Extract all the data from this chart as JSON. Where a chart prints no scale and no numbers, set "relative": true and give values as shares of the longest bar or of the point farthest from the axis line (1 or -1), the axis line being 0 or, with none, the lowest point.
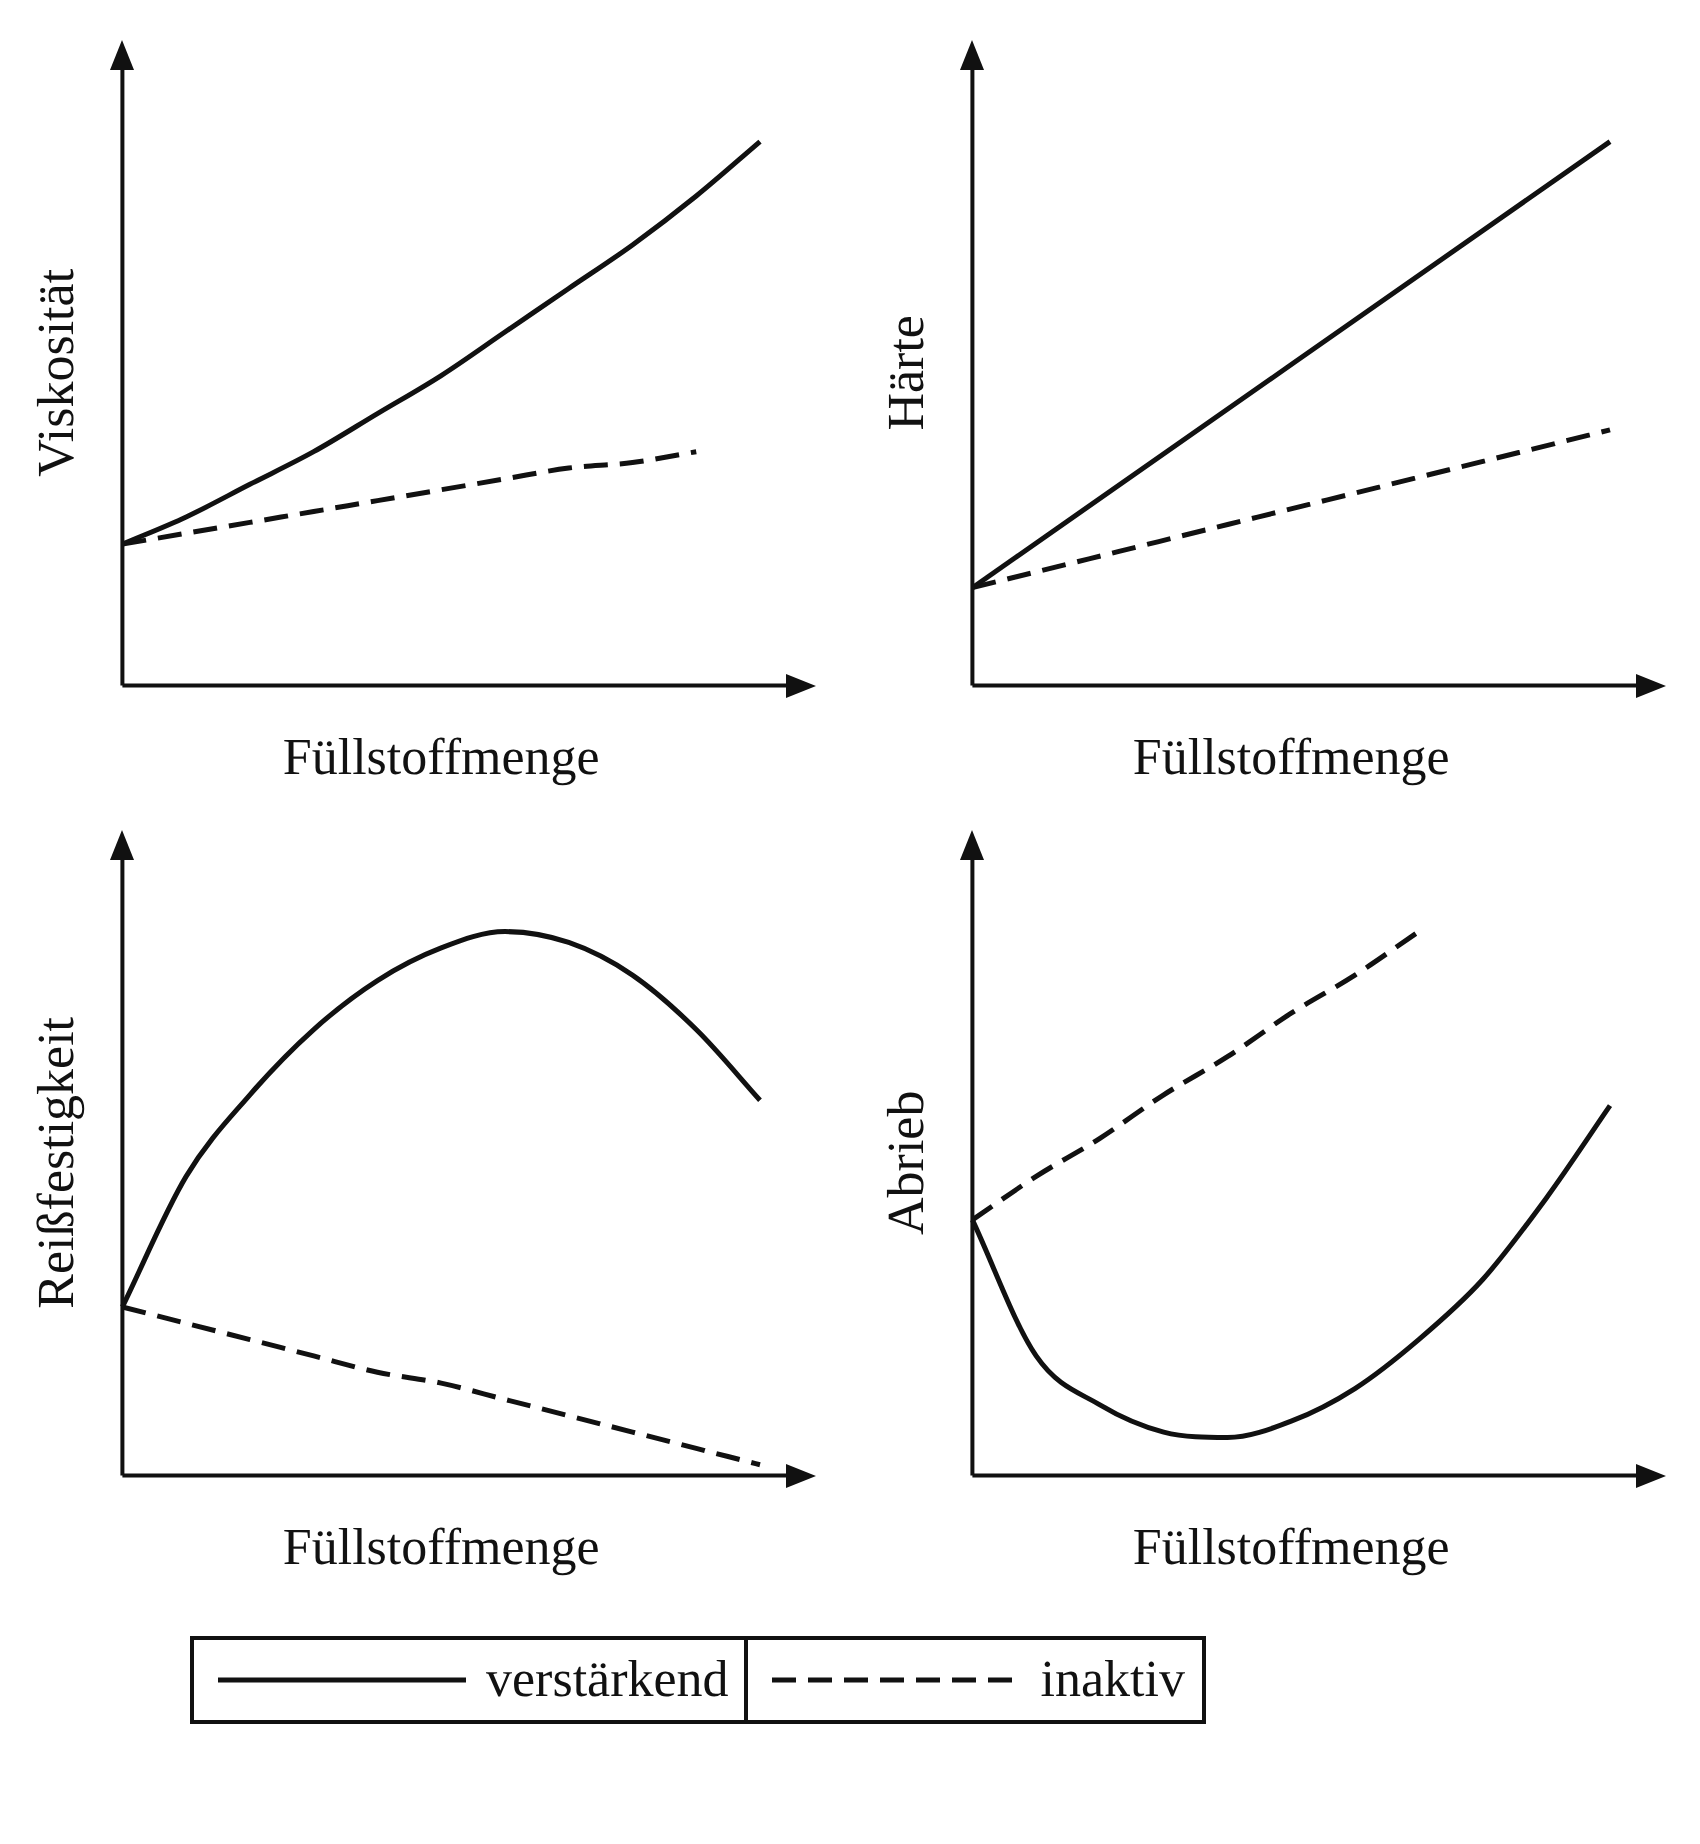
{
  "chart_data": [
    {
      "type": "line",
      "relative": true,
      "ylabel": "Viskosität",
      "xlabel": "Füllstoffmenge",
      "legend": "bottom",
      "categories": [
        null,
        null,
        null,
        null,
        null,
        null,
        null,
        null,
        null,
        null,
        null
      ],
      "series": [
        {
          "name": "verstärkend",
          "color": "#111111",
          "line_style": "solid",
          "values": [
            0.26,
            0.31,
            0.37,
            0.43,
            0.5,
            0.57,
            0.65,
            0.73,
            0.81,
            0.9,
            1.0
          ]
        },
        {
          "name": "inaktiv",
          "color": "#111111",
          "line_style": "dashed",
          "values": [
            0.26,
            0.28,
            0.3,
            0.32,
            0.34,
            0.36,
            0.38,
            0.4,
            0.41,
            0.43,
            null
          ]
        }
      ]
    },
    {
      "type": "line",
      "relative": true,
      "ylabel": "Härte",
      "xlabel": "Füllstoffmenge",
      "categories": [
        null,
        null
      ],
      "series": [
        {
          "color": "#111111",
          "line_style": "solid",
          "values": [
            0.18,
            1.0
          ]
        },
        {
          "color": "#111111",
          "line_style": "dashed",
          "values": [
            0.18,
            0.47
          ]
        }
      ]
    },
    {
      "type": "line",
      "relative": true,
      "ylabel": "Reißfestigkeit",
      "xlabel": "Füllstoffmenge",
      "categories": [
        null,
        null,
        null,
        null,
        null,
        null,
        null,
        null,
        null,
        null,
        null
      ],
      "series": [
        {
          "color": "#111111",
          "line_style": "solid",
          "values": [
            0.31,
            0.55,
            0.7,
            0.82,
            0.91,
            0.97,
            1.0,
            0.98,
            0.92,
            0.82,
            0.69
          ]
        },
        {
          "color": "#111111",
          "line_style": "dashed",
          "values": [
            0.31,
            0.28,
            0.25,
            0.22,
            0.19,
            0.17,
            0.14,
            0.11,
            0.08,
            0.05,
            0.02
          ]
        }
      ]
    },
    {
      "type": "line",
      "relative": true,
      "ylabel": "Abrieb",
      "xlabel": "Füllstoffmenge",
      "categories": [
        null,
        null,
        null,
        null,
        null,
        null,
        null,
        null,
        null,
        null,
        null
      ],
      "series": [
        {
          "color": "#111111",
          "line_style": "solid",
          "values": [
            0.47,
            0.22,
            0.13,
            0.08,
            0.07,
            0.1,
            0.16,
            0.25,
            0.36,
            0.51,
            0.68
          ]
        },
        {
          "color": "#111111",
          "line_style": "dashed",
          "values": [
            0.47,
            0.55,
            0.62,
            0.7,
            0.77,
            0.85,
            0.92,
            1.0,
            null,
            null,
            null
          ]
        }
      ]
    }
  ]
}
